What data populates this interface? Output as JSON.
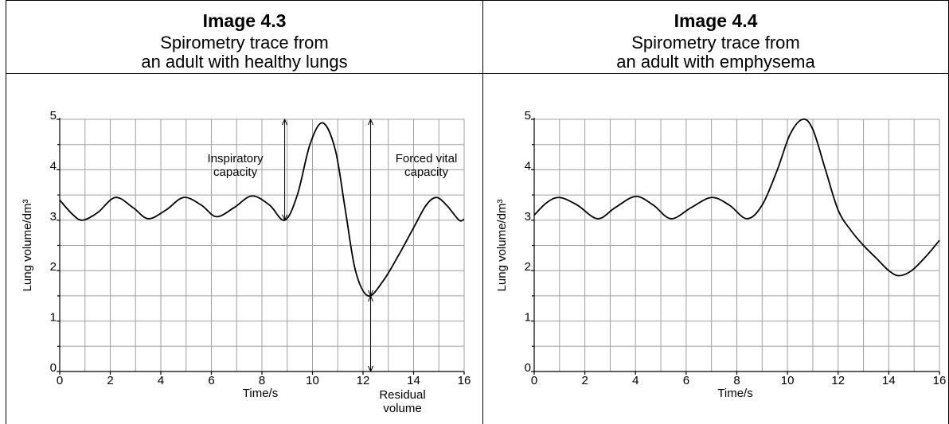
{
  "chart_data": [
    {
      "type": "line",
      "title": "Image 4.3",
      "subtitle": [
        "Spirometry trace from",
        "an adult with healthy lungs"
      ],
      "x_label": "Time/s",
      "y_label": "Lung volume/dm³",
      "xlim": [
        0,
        16
      ],
      "ylim": [
        0,
        5
      ],
      "xticks": [
        0,
        2,
        4,
        6,
        8,
        10,
        12,
        14,
        16
      ],
      "yticks": [
        0,
        1,
        2,
        3,
        4,
        5
      ],
      "x_minor_grid": [
        1,
        3,
        5,
        7,
        9,
        11,
        13,
        15
      ],
      "y_minor_grid": [
        0.5,
        1.5,
        2.5,
        3.5,
        4.5
      ],
      "grid": true,
      "color": "#000000",
      "x": [
        0,
        0.5,
        0.9,
        1.5,
        2.2,
        2.9,
        3.5,
        4.2,
        4.9,
        5.6,
        6.2,
        6.9,
        7.6,
        8.3,
        8.9,
        9.4,
        9.9,
        10.4,
        10.9,
        11.3,
        11.7,
        12.2,
        12.8,
        13.4,
        14.0,
        14.5,
        14.9,
        15.3,
        15.8,
        16
      ],
      "values": [
        3.4,
        3.12,
        3.0,
        3.15,
        3.45,
        3.25,
        3.03,
        3.2,
        3.45,
        3.3,
        3.07,
        3.25,
        3.48,
        3.3,
        3.0,
        3.5,
        4.5,
        4.93,
        4.4,
        3.2,
        2.0,
        1.5,
        1.8,
        2.3,
        2.85,
        3.3,
        3.45,
        3.3,
        3.0,
        3.02
      ],
      "annotations": [
        {
          "text": [
            "Inspiratory",
            "capacity"
          ],
          "x": 8.9,
          "from": 3.0,
          "to": 5.0
        },
        {
          "text": [
            "Forced vital",
            "capacity"
          ],
          "x": 12.3,
          "from": 1.5,
          "to": 5.0
        },
        {
          "text": [
            "Residual",
            "volume"
          ],
          "x": 12.3,
          "from": 0,
          "to": 1.5
        }
      ]
    },
    {
      "type": "line",
      "title": "Image 4.4",
      "subtitle": [
        "Spirometry trace from",
        "an adult with emphysema"
      ],
      "x_label": "Time/s",
      "y_label": "Lung volume/dm³",
      "xlim": [
        0,
        16
      ],
      "ylim": [
        0,
        5
      ],
      "xticks": [
        0,
        2,
        4,
        6,
        8,
        10,
        12,
        14,
        16
      ],
      "yticks": [
        0,
        1,
        2,
        3,
        4,
        5
      ],
      "x_minor_grid": [
        1,
        3,
        5,
        7,
        9,
        11,
        13,
        15
      ],
      "y_minor_grid": [
        0.5,
        1.5,
        2.5,
        3.5,
        4.5
      ],
      "grid": true,
      "color": "#000000",
      "x": [
        0,
        0.5,
        1.0,
        1.7,
        2.5,
        3.2,
        4.0,
        4.7,
        5.4,
        6.2,
        7.0,
        7.7,
        8.4,
        9.0,
        9.6,
        10.1,
        10.6,
        11.0,
        11.5,
        12.0,
        12.5,
        13.0,
        13.5,
        14.0,
        14.4,
        14.9,
        15.5,
        16
      ],
      "values": [
        3.1,
        3.35,
        3.45,
        3.3,
        3.03,
        3.25,
        3.47,
        3.3,
        3.03,
        3.25,
        3.45,
        3.3,
        3.03,
        3.3,
        4.0,
        4.7,
        5.0,
        4.8,
        4.0,
        3.2,
        2.8,
        2.5,
        2.25,
        2.0,
        1.9,
        2.0,
        2.3,
        2.6
      ]
    }
  ]
}
